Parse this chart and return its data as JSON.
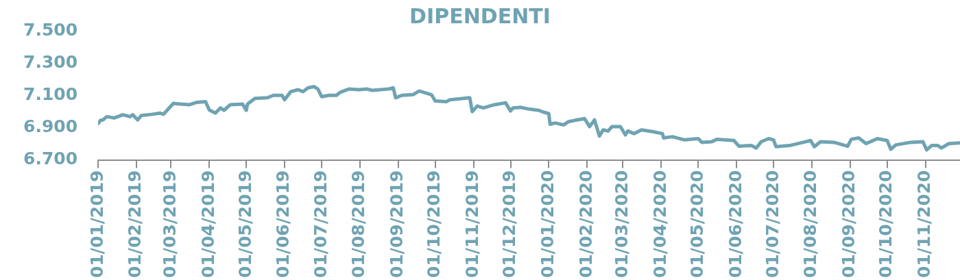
{
  "chart_data": {
    "type": "line",
    "title": "DIPENDENTI",
    "marker": "none",
    "line_style": "solid",
    "xlim": [
      "2019-01-01",
      "2020-11-29"
    ],
    "xticks": [
      {
        "value": "2019-01-01",
        "label": "01/01/2019"
      },
      {
        "value": "2019-02-01",
        "label": "01/02/2019"
      },
      {
        "value": "2019-03-01",
        "label": "01/03/2019"
      },
      {
        "value": "2019-04-01",
        "label": "01/04/2019"
      },
      {
        "value": "2019-05-01",
        "label": "01/05/2019"
      },
      {
        "value": "2019-06-01",
        "label": "01/06/2019"
      },
      {
        "value": "2019-07-01",
        "label": "01/07/2019"
      },
      {
        "value": "2019-08-01",
        "label": "01/08/2019"
      },
      {
        "value": "2019-09-01",
        "label": "01/09/2019"
      },
      {
        "value": "2019-10-01",
        "label": "01/10/2019"
      },
      {
        "value": "2019-11-01",
        "label": "01/11/2019"
      },
      {
        "value": "2019-12-01",
        "label": "01/12/2019"
      },
      {
        "value": "2020-01-01",
        "label": "01/01/2020"
      },
      {
        "value": "2020-02-01",
        "label": "01/02/2020"
      },
      {
        "value": "2020-03-01",
        "label": "01/03/2020"
      },
      {
        "value": "2020-04-01",
        "label": "01/04/2020"
      },
      {
        "value": "2020-05-01",
        "label": "01/05/2020"
      },
      {
        "value": "2020-06-01",
        "label": "01/06/2020"
      },
      {
        "value": "2020-07-01",
        "label": "01/07/2020"
      },
      {
        "value": "2020-08-01",
        "label": "01/08/2020"
      },
      {
        "value": "2020-09-01",
        "label": "01/09/2020"
      },
      {
        "value": "2020-10-01",
        "label": "01/10/2020"
      },
      {
        "value": "2020-11-01",
        "label": "01/11/2020"
      }
    ],
    "ylim": [
      6700,
      7500
    ],
    "yticks": [
      {
        "value": 6700,
        "label": "6.700"
      },
      {
        "value": 6900,
        "label": "6.900"
      },
      {
        "value": 7100,
        "label": "7.100"
      },
      {
        "value": 7300,
        "label": "7.300"
      },
      {
        "value": 7500,
        "label": "7.500"
      }
    ],
    "x": [
      "2019-01-01",
      "2019-01-03",
      "2019-01-05",
      "2019-01-08",
      "2019-01-14",
      "2019-01-21",
      "2019-01-27",
      "2019-01-29",
      "2019-02-02",
      "2019-02-05",
      "2019-02-14",
      "2019-02-20",
      "2019-02-23",
      "2019-02-28",
      "2019-03-03",
      "2019-03-16",
      "2019-03-22",
      "2019-03-29",
      "2019-04-01",
      "2019-04-06",
      "2019-04-10",
      "2019-04-13",
      "2019-04-18",
      "2019-04-28",
      "2019-05-01",
      "2019-05-02",
      "2019-05-08",
      "2019-05-18",
      "2019-05-23",
      "2019-05-30",
      "2019-06-01",
      "2019-06-06",
      "2019-06-12",
      "2019-06-16",
      "2019-06-20",
      "2019-06-25",
      "2019-06-28",
      "2019-07-01",
      "2019-07-07",
      "2019-07-13",
      "2019-07-16",
      "2019-07-23",
      "2019-07-31",
      "2019-08-07",
      "2019-08-11",
      "2019-08-24",
      "2019-08-28",
      "2019-08-30",
      "2019-09-04",
      "2019-09-13",
      "2019-09-18",
      "2019-09-28",
      "2019-10-01",
      "2019-10-10",
      "2019-10-13",
      "2019-10-29",
      "2019-10-31",
      "2019-11-04",
      "2019-11-09",
      "2019-11-18",
      "2019-11-27",
      "2019-12-01",
      "2019-12-03",
      "2019-12-09",
      "2019-12-16",
      "2019-12-24",
      "2019-12-28",
      "2020-01-01",
      "2020-01-02",
      "2020-01-06",
      "2020-01-13",
      "2020-01-17",
      "2020-01-22",
      "2020-01-30",
      "2020-02-03",
      "2020-02-07",
      "2020-02-11",
      "2020-02-14",
      "2020-02-18",
      "2020-02-21",
      "2020-02-28",
      "2020-03-03",
      "2020-03-05",
      "2020-03-10",
      "2020-03-16",
      "2020-03-25",
      "2020-04-02",
      "2020-04-03",
      "2020-04-10",
      "2020-04-20",
      "2020-05-01",
      "2020-05-04",
      "2020-05-12",
      "2020-05-16",
      "2020-05-30",
      "2020-06-03",
      "2020-06-13",
      "2020-06-17",
      "2020-06-21",
      "2020-06-27",
      "2020-07-01",
      "2020-07-03",
      "2020-07-14",
      "2020-07-25",
      "2020-07-31",
      "2020-08-03",
      "2020-08-08",
      "2020-08-19",
      "2020-08-30",
      "2020-09-02",
      "2020-09-08",
      "2020-09-14",
      "2020-09-23",
      "2020-10-01",
      "2020-10-04",
      "2020-10-08",
      "2020-10-20",
      "2020-10-30",
      "2020-11-02",
      "2020-11-06",
      "2020-11-11",
      "2020-11-14",
      "2020-11-20",
      "2020-11-29"
    ],
    "series": [
      {
        "color": "#6fa3b2",
        "values": [
          6925,
          6945,
          6948,
          6968,
          6960,
          6980,
          6968,
          6980,
          6948,
          6975,
          6983,
          6990,
          6983,
          7026,
          7050,
          7042,
          7057,
          7061,
          7010,
          6990,
          7022,
          7007,
          7042,
          7046,
          7007,
          7046,
          7081,
          7085,
          7100,
          7100,
          7073,
          7123,
          7135,
          7123,
          7147,
          7154,
          7139,
          7092,
          7100,
          7100,
          7119,
          7139,
          7135,
          7139,
          7131,
          7139,
          7147,
          7085,
          7100,
          7104,
          7127,
          7104,
          7065,
          7061,
          7073,
          7085,
          6999,
          7034,
          7022,
          7042,
          7054,
          7003,
          7022,
          7026,
          7015,
          7007,
          6995,
          6987,
          6921,
          6929,
          6917,
          6937,
          6945,
          6956,
          6906,
          6948,
          6848,
          6886,
          6879,
          6906,
          6906,
          6855,
          6879,
          6863,
          6886,
          6875,
          6863,
          6836,
          6844,
          6824,
          6832,
          6809,
          6813,
          6828,
          6820,
          6785,
          6789,
          6774,
          6813,
          6832,
          6824,
          6782,
          6789,
          6809,
          6820,
          6782,
          6813,
          6809,
          6785,
          6828,
          6836,
          6801,
          6832,
          6820,
          6766,
          6793,
          6809,
          6813,
          6762,
          6789,
          6789,
          6774,
          6801,
          6805
        ]
      }
    ]
  }
}
